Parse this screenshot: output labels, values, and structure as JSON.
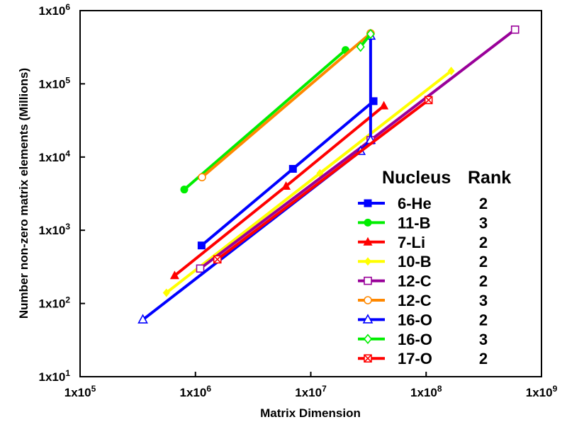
{
  "chart_data": {
    "type": "line",
    "xlabel": "Matrix Dimension",
    "ylabel": "Number non-zero matrix elements (Millions)",
    "xscale": "log",
    "yscale": "log",
    "xlim": [
      100000,
      1000000000
    ],
    "ylim": [
      10,
      1000000
    ],
    "x_ticks": [
      {
        "base": "1x10",
        "exp": "5",
        "value": 100000
      },
      {
        "base": "1x10",
        "exp": "6",
        "value": 1000000
      },
      {
        "base": "1x10",
        "exp": "7",
        "value": 10000000
      },
      {
        "base": "1x10",
        "exp": "8",
        "value": 100000000
      },
      {
        "base": "1x10",
        "exp": "9",
        "value": 1000000000
      }
    ],
    "y_ticks": [
      {
        "base": "1x10",
        "exp": "1",
        "value": 10
      },
      {
        "base": "1x10",
        "exp": "2",
        "value": 100
      },
      {
        "base": "1x10",
        "exp": "3",
        "value": 1000
      },
      {
        "base": "1x10",
        "exp": "4",
        "value": 10000
      },
      {
        "base": "1x10",
        "exp": "5",
        "value": 100000
      },
      {
        "base": "1x10",
        "exp": "6",
        "value": 1000000
      }
    ],
    "legend": {
      "position": "bottom-right",
      "header_nucleus": "Nucleus",
      "header_rank": "Rank"
    },
    "series": [
      {
        "name": "6-He",
        "rank": "2",
        "color": "#0000ff",
        "marker": "square-filled",
        "points": [
          [
            1130000,
            620
          ],
          [
            7000000,
            6900
          ],
          [
            35000000,
            58000
          ]
        ]
      },
      {
        "name": "11-B",
        "rank": "3",
        "color": "#00ee00",
        "marker": "circle-filled",
        "points": [
          [
            800000,
            3600
          ],
          [
            20000000,
            290000
          ]
        ]
      },
      {
        "name": "7-Li",
        "rank": "2",
        "color": "#ff0000",
        "marker": "triangle-filled",
        "points": [
          [
            660000,
            240
          ],
          [
            6100000,
            4000
          ],
          [
            43000000,
            50000
          ]
        ]
      },
      {
        "name": "10-B",
        "rank": "2",
        "color": "#ffff00",
        "marker": "diamond-filled",
        "points": [
          [
            560000,
            140
          ],
          [
            12000000,
            6000
          ],
          [
            165000000,
            150000
          ]
        ]
      },
      {
        "name": "12-C",
        "rank": "2",
        "color": "#990099",
        "marker": "square-open",
        "points": [
          [
            1100000,
            300
          ],
          [
            33000000,
            17000
          ],
          [
            590000000,
            550000
          ]
        ]
      },
      {
        "name": "12-C",
        "rank": "3",
        "color": "#ff8800",
        "marker": "circle-open",
        "points": [
          [
            1140000,
            5300
          ],
          [
            33000000,
            490000
          ]
        ]
      },
      {
        "name": "16-O",
        "rank": "2",
        "color": "#0000ff",
        "marker": "triangle-open",
        "points": [
          [
            350000,
            60
          ],
          [
            27000000,
            12000
          ],
          [
            33000000,
            17000
          ],
          [
            33000000,
            450000
          ]
        ]
      },
      {
        "name": "16-O",
        "rank": "3",
        "color": "#00ee00",
        "marker": "diamond-open",
        "points": [
          [
            27000000,
            320000
          ],
          [
            33000000,
            480000
          ]
        ]
      },
      {
        "name": "17-O",
        "rank": "2",
        "color": "#ff0000",
        "marker": "x-square",
        "points": [
          [
            1550000,
            400
          ],
          [
            105000000,
            60000
          ]
        ]
      }
    ]
  }
}
